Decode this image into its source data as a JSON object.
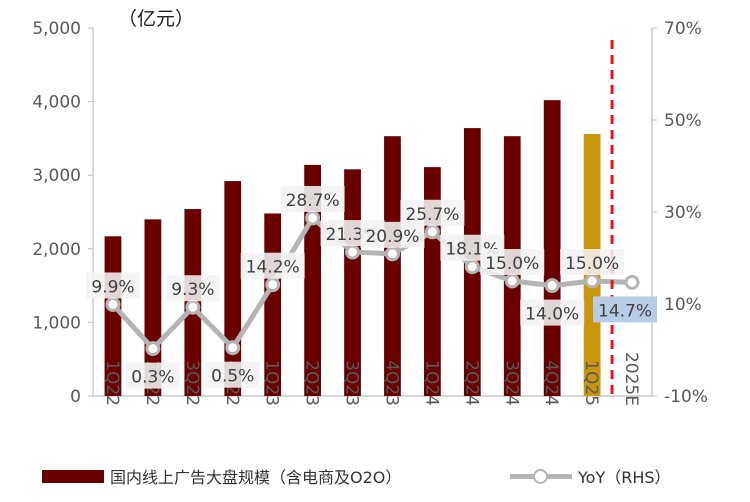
{
  "chart_data": {
    "type": "bar",
    "unit_label": "（亿元）",
    "categories": [
      "1Q22",
      "2Q22",
      "3Q22",
      "4Q22",
      "1Q23",
      "2Q23",
      "3Q23",
      "4Q23",
      "1Q24",
      "2Q24",
      "3Q24",
      "4Q24",
      "1Q25",
      "2025E"
    ],
    "series": [
      {
        "name": "国内线上广告大盘规模（含电商及O2O）",
        "type": "bar",
        "axis": "left",
        "values": [
          2170,
          2400,
          2540,
          2920,
          2480,
          3140,
          3080,
          3530,
          3110,
          3640,
          3530,
          4020,
          3560,
          null
        ],
        "colors": [
          "#6b0000",
          "#6b0000",
          "#6b0000",
          "#6b0000",
          "#6b0000",
          "#6b0000",
          "#6b0000",
          "#6b0000",
          "#6b0000",
          "#6b0000",
          "#6b0000",
          "#6b0000",
          "#c9950d",
          null
        ]
      },
      {
        "name": "YoY（RHS）",
        "type": "line",
        "axis": "right",
        "values": [
          9.9,
          0.3,
          9.3,
          0.5,
          14.2,
          28.7,
          21.3,
          20.9,
          25.7,
          18.1,
          15.0,
          14.0,
          15.0,
          14.7
        ],
        "labels": [
          "9.9%",
          "0.3%",
          "9.3%",
          "0.5%",
          "14.2%",
          "28.7%",
          "21.3%",
          "20.9%",
          "25.7%",
          "18.1%",
          "15.0%",
          "14.0%",
          "15.0%",
          "14.7%"
        ],
        "color": "#b4b4b4"
      }
    ],
    "y_left": {
      "min": 0,
      "max": 5000,
      "ticks": [
        0,
        1000,
        2000,
        3000,
        4000,
        5000
      ],
      "tick_labels": [
        "0",
        "1,000",
        "2,000",
        "3,000",
        "4,000",
        "5,000"
      ]
    },
    "y_right": {
      "min": -10,
      "max": 70,
      "ticks": [
        -10,
        10,
        30,
        50,
        70
      ],
      "tick_labels": [
        "-10%",
        "10%",
        "30%",
        "50%",
        "70%"
      ]
    },
    "divider": {
      "after_category": "1Q25",
      "color": "#e8141b",
      "style": "dashed"
    },
    "highlight_label_index": 13,
    "highlight_label_color": "#b7cce6",
    "grid": false
  }
}
